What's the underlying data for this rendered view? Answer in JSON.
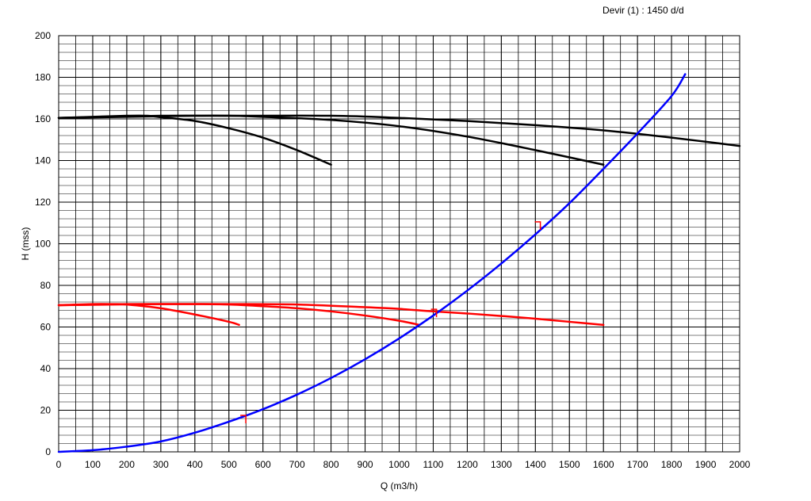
{
  "chart_data": {
    "type": "line",
    "title": "",
    "annotation": "Devir (1)  : 1450 d/d",
    "xlabel": "Q (m3/h)",
    "ylabel": "H (mss)",
    "xlim": [
      0,
      2000
    ],
    "ylim": [
      0,
      200
    ],
    "x_ticks": [
      0,
      100,
      200,
      300,
      400,
      500,
      600,
      700,
      800,
      900,
      1000,
      1100,
      1200,
      1300,
      1400,
      1500,
      1600,
      1700,
      1800,
      1900,
      2000
    ],
    "y_ticks": [
      0,
      20,
      40,
      60,
      80,
      100,
      120,
      140,
      160,
      180,
      200
    ],
    "x_minor_step": 50,
    "y_minor_step": 4,
    "grid": true,
    "legend": "none",
    "colors": {
      "pump_curve": "#000000",
      "low_head_curve": "#ff0000",
      "system_curve": "#0000ff",
      "marker": "#ff0000",
      "grid": "#000000"
    },
    "series": [
      {
        "color": "#000000",
        "x": [
          0,
          100,
          200,
          260,
          300,
          400,
          500,
          600,
          700,
          800
        ],
        "y": [
          160.5,
          161,
          161.5,
          161.5,
          160.8,
          159,
          155.5,
          151,
          145,
          138
        ]
      },
      {
        "color": "#000000",
        "x": [
          0,
          200,
          400,
          500,
          600,
          800,
          1000,
          1200,
          1400,
          1600
        ],
        "y": [
          160.5,
          161,
          161.5,
          161.5,
          161,
          159.5,
          156.5,
          151.5,
          145,
          138
        ]
      },
      {
        "color": "#000000",
        "x": [
          0,
          300,
          500,
          800,
          1000,
          1200,
          1400,
          1600,
          1800,
          2000
        ],
        "y": [
          160.5,
          161.5,
          161.5,
          161.5,
          160.5,
          159,
          157,
          154.5,
          151,
          147
        ]
      },
      {
        "color": "#ff0000",
        "x": [
          0,
          100,
          160,
          200,
          300,
          400,
          500,
          530
        ],
        "y": [
          70.5,
          71,
          71,
          70.8,
          69,
          66,
          62.5,
          61
        ]
      },
      {
        "color": "#ff0000",
        "x": [
          0,
          200,
          400,
          500,
          600,
          700,
          800,
          900,
          1000,
          1060
        ],
        "y": [
          70.5,
          71,
          71,
          70.8,
          70,
          69,
          67.5,
          65.5,
          63,
          61
        ]
      },
      {
        "color": "#ff0000",
        "x": [
          0,
          300,
          500,
          700,
          900,
          1000,
          1100,
          1200,
          1300,
          1400,
          1500,
          1600
        ],
        "y": [
          70.5,
          71,
          71,
          70.8,
          69.5,
          68.7,
          67.5,
          66.5,
          65.3,
          64,
          62.5,
          61
        ]
      },
      {
        "color": "#0000ff",
        "x": [
          0,
          100,
          200,
          300,
          400,
          500,
          600,
          700,
          800,
          900,
          1000,
          1100,
          1200,
          1300,
          1400,
          1500,
          1600,
          1700,
          1800,
          1840
        ],
        "y": [
          0,
          0.8,
          2.5,
          5,
          9.2,
          14.5,
          20.5,
          27.5,
          35.5,
          44.5,
          54.5,
          65.5,
          77.5,
          90.5,
          104.5,
          119.5,
          136,
          153,
          171,
          181.5
        ]
      }
    ],
    "markers": [
      {
        "x": 545,
        "y": 16
      },
      {
        "x": 1105,
        "y": 67
      },
      {
        "x": 1410,
        "y": 109
      }
    ]
  }
}
